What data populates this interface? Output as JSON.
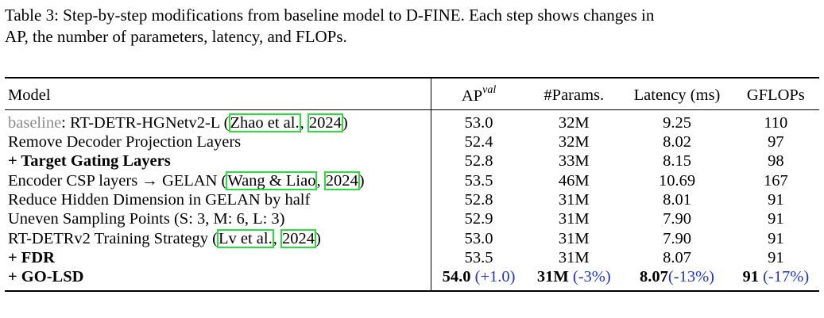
{
  "caption": {
    "line1": "Table 3: Step-by-step modifications from baseline model to D-FINE. Each step shows changes in",
    "line2": "AP, the number of parameters, latency, and FLOPs."
  },
  "table": {
    "headers": {
      "model": "Model",
      "ap": "AP",
      "ap_sup": "val",
      "params": "#Params.",
      "latency": "Latency (ms)",
      "gflops": "GFLOPs"
    },
    "rows": [
      {
        "model_prefix": "baseline",
        "model_text": ": RT-DETR-HGNetv2-L (",
        "cite_a": "Zhao et al.",
        "cite_sep": ", ",
        "cite_b": "2024",
        "model_suffix": ")",
        "ap": "53.0",
        "params": "32M",
        "latency": "9.25",
        "gflops": "110"
      },
      {
        "model": "Remove Decoder Projection Layers",
        "ap": "52.4",
        "params": "32M",
        "latency": "8.02",
        "gflops": "97"
      },
      {
        "model": "+ Target Gating Layers",
        "ap": "52.8",
        "params": "33M",
        "latency": "8.15",
        "gflops": "98"
      },
      {
        "model_text": "Encoder CSP layers → GELAN (",
        "cite_a": "Wang & Liao",
        "cite_sep": ", ",
        "cite_b": "2024",
        "model_suffix": ")",
        "ap": "53.5",
        "params": "46M",
        "latency": "10.69",
        "gflops": "167"
      },
      {
        "model": "Reduce Hidden Dimension in GELAN by half",
        "ap": "52.8",
        "params": "31M",
        "latency": "8.01",
        "gflops": "91"
      },
      {
        "model": "Uneven Sampling Points (S: 3, M: 6, L: 3)",
        "ap": "52.9",
        "params": "31M",
        "latency": "7.90",
        "gflops": "91"
      },
      {
        "model_text": "RT-DETRv2 Training Strategy (",
        "cite_a": "Lv et al.",
        "cite_sep": ", ",
        "cite_b": "2024",
        "model_suffix": ")",
        "ap": "53.0",
        "params": "31M",
        "latency": "7.90",
        "gflops": "91"
      },
      {
        "model": "+ FDR",
        "ap": "53.5",
        "params": "31M",
        "latency": "8.07",
        "gflops": "91"
      },
      {
        "model": "+ GO-LSD",
        "ap": "54.0",
        "ap_delta": "(+1.0)",
        "params": "31M",
        "params_delta": "(-3%)",
        "latency": "8.07",
        "latency_delta": "(-13%)",
        "gflops": "91",
        "gflops_delta": "(-17%)"
      }
    ]
  },
  "colors": {
    "baseline_gray": "#8a8a8a",
    "delta_blue": "#1f35d6",
    "citation_box": "#29e03a"
  }
}
